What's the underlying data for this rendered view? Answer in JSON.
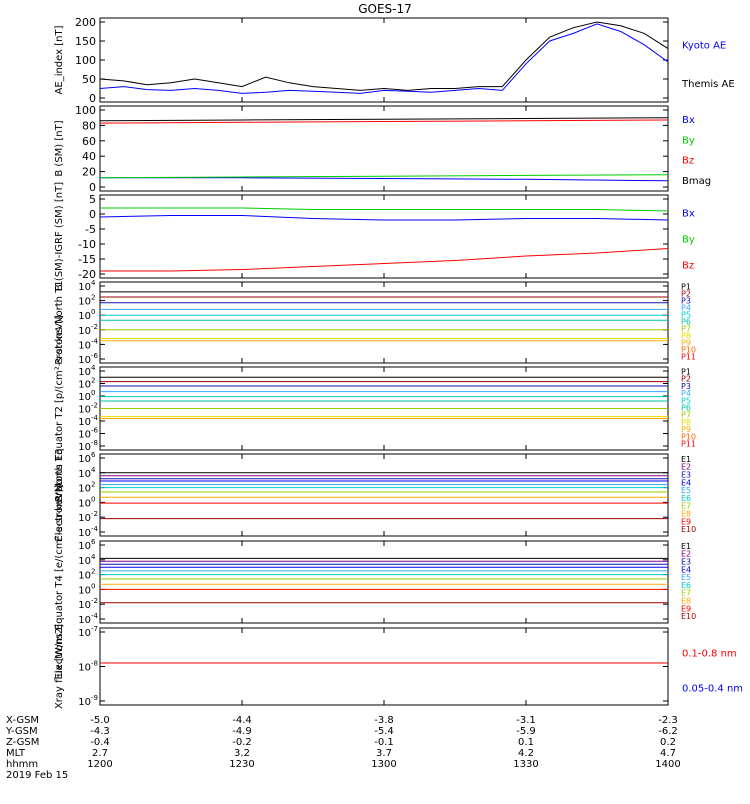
{
  "title": "GOES-17",
  "colors": {
    "black": "#000000",
    "blue": "#0000ff",
    "green": "#00cc00",
    "red": "#ff0000",
    "darkred": "#cc0000",
    "navy": "#1010b0",
    "purple": "#800080",
    "cyan": "#00cccc",
    "teal": "#00c0a0",
    "yellowgreen": "#99cc00",
    "yellow": "#e0e000",
    "orange": "#ffaa00",
    "darkorange": "#ff6600",
    "maroon": "#990000",
    "lightblue": "#33aaff"
  },
  "chart_data": [
    {
      "type": "line",
      "ylabel": "AE_index [nT]",
      "ylim": [
        0,
        200
      ],
      "yticks": [
        "200",
        "150",
        "100",
        "50",
        "0"
      ],
      "x": [
        1200,
        1205,
        1210,
        1215,
        1220,
        1225,
        1230,
        1235,
        1240,
        1245,
        1250,
        1255,
        1300,
        1305,
        1310,
        1315,
        1320,
        1325,
        1330,
        1335,
        1340,
        1345,
        1350,
        1355,
        1400
      ],
      "series": [
        {
          "name": "Kyoto AE",
          "color": "blue",
          "values": [
            25,
            30,
            22,
            20,
            25,
            20,
            12,
            15,
            20,
            18,
            15,
            12,
            20,
            18,
            15,
            20,
            25,
            20,
            90,
            150,
            170,
            195,
            175,
            140,
            95
          ]
        },
        {
          "name": "Themis AE",
          "color": "black",
          "values": [
            50,
            45,
            35,
            40,
            50,
            40,
            30,
            55,
            40,
            30,
            25,
            20,
            25,
            20,
            25,
            25,
            30,
            30,
            100,
            160,
            185,
            200,
            190,
            170,
            130
          ]
        }
      ],
      "legend": [
        {
          "label": "Kyoto AE",
          "color": "blue"
        },
        {
          "label": "Themis AE",
          "color": "black"
        }
      ]
    },
    {
      "type": "line",
      "ylabel": "B (SM) [nT]",
      "ylim": [
        0,
        100
      ],
      "yticks": [
        "100",
        "80",
        "60",
        "40",
        "20",
        "0"
      ],
      "x": [
        1200,
        1230,
        1300,
        1330,
        1400
      ],
      "series": [
        {
          "name": "Bx",
          "color": "blue",
          "values": [
            12,
            12,
            11,
            10,
            8
          ]
        },
        {
          "name": "By",
          "color": "green",
          "values": [
            12,
            13,
            14,
            15,
            16
          ]
        },
        {
          "name": "Bz",
          "color": "red",
          "values": [
            83,
            84,
            85,
            86,
            87
          ]
        },
        {
          "name": "Bmag",
          "color": "black",
          "values": [
            86,
            87,
            88,
            89,
            90
          ]
        }
      ],
      "legend": [
        {
          "label": "Bx",
          "color": "blue"
        },
        {
          "label": "By",
          "color": "green"
        },
        {
          "label": "Bz",
          "color": "red"
        },
        {
          "label": "Bmag",
          "color": "black"
        }
      ]
    },
    {
      "type": "line",
      "ylabel": "B (SM)-IGRF (SM) [nT]",
      "ylim": [
        -20,
        5
      ],
      "yticks": [
        "5",
        "0",
        "-5",
        "-10",
        "-15",
        "-20"
      ],
      "x": [
        1200,
        1215,
        1230,
        1245,
        1300,
        1315,
        1330,
        1345,
        1400
      ],
      "series": [
        {
          "name": "Bx",
          "color": "blue",
          "values": [
            -1,
            -0.5,
            -0.5,
            -1.5,
            -2,
            -2,
            -1.5,
            -1.5,
            -2
          ]
        },
        {
          "name": "By",
          "color": "green",
          "values": [
            2,
            2,
            2,
            1.5,
            1.5,
            1.5,
            1.5,
            1.5,
            1
          ]
        },
        {
          "name": "Bz",
          "color": "red",
          "values": [
            -19,
            -19,
            -18.5,
            -17.5,
            -16.5,
            -15.5,
            -14,
            -13,
            -11.5
          ]
        }
      ],
      "legend": [
        {
          "label": "Bx",
          "color": "blue"
        },
        {
          "label": "By",
          "color": "green"
        },
        {
          "label": "Bz",
          "color": "red"
        }
      ]
    },
    {
      "type": "line",
      "ylabel": "Protons North T1",
      "yscale": "log",
      "ylim": [
        1e-06,
        10000.0
      ],
      "yticks": [
        {
          "m": "10",
          "e": "4"
        },
        {
          "m": "10",
          "e": "2"
        },
        {
          "m": "10",
          "e": "0"
        },
        {
          "m": "10",
          "e": "-2"
        },
        {
          "m": "10",
          "e": "-4"
        },
        {
          "m": "10",
          "e": "-6"
        }
      ],
      "series": [
        {
          "name": "P1",
          "color": "black",
          "exp": 3.2
        },
        {
          "name": "P2",
          "color": "maroon",
          "exp": 2.5
        },
        {
          "name": "P3",
          "color": "navy",
          "exp": 1.7
        },
        {
          "name": "P4",
          "color": "lightblue",
          "exp": 0.8
        },
        {
          "name": "P5",
          "color": "cyan",
          "exp": 0.0
        },
        {
          "name": "P6",
          "color": "teal",
          "exp": -0.7
        },
        {
          "name": "P7",
          "color": "yellowgreen",
          "exp": -2.0
        },
        {
          "name": "P8",
          "color": "yellow",
          "exp": -3.2
        },
        {
          "name": "P9",
          "color": "orange",
          "exp": -3.5
        },
        {
          "name": "P10",
          "color": "darkorange",
          "exp": null
        },
        {
          "name": "P11",
          "color": "red",
          "exp": null
        }
      ]
    },
    {
      "type": "line",
      "ylabel": "Protons Equator T2 [p/(cm²-s-sr-keV)]",
      "yscale": "log",
      "ylim": [
        1e-08,
        10000.0
      ],
      "yticks": [
        {
          "m": "10",
          "e": "4"
        },
        {
          "m": "10",
          "e": "2"
        },
        {
          "m": "10",
          "e": "0"
        },
        {
          "m": "10",
          "e": "-2"
        },
        {
          "m": "10",
          "e": "-4"
        },
        {
          "m": "10",
          "e": "-6"
        },
        {
          "m": "10",
          "e": "-8"
        }
      ],
      "series": [
        {
          "name": "P1",
          "color": "black",
          "exp": 3.0
        },
        {
          "name": "P2",
          "color": "maroon",
          "exp": 2.3
        },
        {
          "name": "P3",
          "color": "navy",
          "exp": 1.6
        },
        {
          "name": "P4",
          "color": "lightblue",
          "exp": 0.7
        },
        {
          "name": "P5",
          "color": "cyan",
          "exp": -0.1
        },
        {
          "name": "P6",
          "color": "teal",
          "exp": -0.8
        },
        {
          "name": "P7",
          "color": "yellowgreen",
          "exp": -2.0
        },
        {
          "name": "P8",
          "color": "yellow",
          "exp": -3.3
        },
        {
          "name": "P9",
          "color": "orange",
          "exp": -3.6
        },
        {
          "name": "P10",
          "color": "darkorange",
          "exp": null
        },
        {
          "name": "P11",
          "color": "red",
          "exp": null
        }
      ]
    },
    {
      "type": "line",
      "ylabel": "Electrons North T3",
      "yscale": "log",
      "ylim": [
        0.0001,
        1000000.0
      ],
      "yticks": [
        {
          "m": "10",
          "e": "6"
        },
        {
          "m": "10",
          "e": "4"
        },
        {
          "m": "10",
          "e": "2"
        },
        {
          "m": "10",
          "e": "0"
        },
        {
          "m": "10",
          "e": "-2"
        },
        {
          "m": "10",
          "e": "-4"
        }
      ],
      "series": [
        {
          "name": "E1",
          "color": "black",
          "exp": 4.0
        },
        {
          "name": "E2",
          "color": "purple",
          "exp": 3.6
        },
        {
          "name": "E3",
          "color": "navy",
          "exp": 3.2
        },
        {
          "name": "E4",
          "color": "blue",
          "exp": 2.9
        },
        {
          "name": "E5",
          "color": "lightblue",
          "exp": 2.4
        },
        {
          "name": "E6",
          "color": "cyan",
          "exp": 2.0
        },
        {
          "name": "E7",
          "color": "yellowgreen",
          "exp": 1.4
        },
        {
          "name": "E8",
          "color": "orange",
          "exp": 0.7
        },
        {
          "name": "E9",
          "color": "red",
          "exp": -0.1
        },
        {
          "name": "E10",
          "color": "maroon",
          "exp": -2.2
        }
      ]
    },
    {
      "type": "line",
      "ylabel": "Electrons Equator T4 [e/(cm²-s-sr-keV)]",
      "yscale": "log",
      "ylim": [
        0.0001,
        1000000.0
      ],
      "yticks": [
        {
          "m": "10",
          "e": "6"
        },
        {
          "m": "10",
          "e": "4"
        },
        {
          "m": "10",
          "e": "2"
        },
        {
          "m": "10",
          "e": "0"
        },
        {
          "m": "10",
          "e": "-2"
        },
        {
          "m": "10",
          "e": "-4"
        }
      ],
      "series": [
        {
          "name": "E1",
          "color": "black",
          "exp": 4.2
        },
        {
          "name": "E2",
          "color": "purple",
          "exp": 3.8
        },
        {
          "name": "E3",
          "color": "navy",
          "exp": 3.4
        },
        {
          "name": "E4",
          "color": "blue",
          "exp": 3.0
        },
        {
          "name": "E5",
          "color": "lightblue",
          "exp": 2.5
        },
        {
          "name": "E6",
          "color": "cyan",
          "exp": 2.0
        },
        {
          "name": "E7",
          "color": "yellowgreen",
          "exp": 1.4
        },
        {
          "name": "E8",
          "color": "orange",
          "exp": 0.7
        },
        {
          "name": "E9",
          "color": "red",
          "exp": 0.0
        },
        {
          "name": "E10",
          "color": "maroon",
          "exp": -1.8
        }
      ]
    },
    {
      "type": "line",
      "ylabel": "Xray flux [W/m2]",
      "yscale": "log",
      "ylim": [
        1e-09,
        1e-07
      ],
      "yticks": [
        {
          "m": "10",
          "e": "-7"
        },
        {
          "m": "10",
          "e": "-8"
        },
        {
          "m": "10",
          "e": "-9"
        }
      ],
      "series": [
        {
          "name": "0.1-0.8 nm",
          "color": "red",
          "exp": -7.9
        },
        {
          "name": "0.05-0.4 nm",
          "color": "blue",
          "exp": null
        }
      ]
    }
  ],
  "xaxis": {
    "rows": [
      {
        "label": "X-GSM",
        "values": [
          "-5.0",
          "-4.4",
          "-3.8",
          "-3.1",
          "-2.3"
        ]
      },
      {
        "label": "Y-GSM",
        "values": [
          "-4.3",
          "-4.9",
          "-5.4",
          "-5.9",
          "-6.2"
        ]
      },
      {
        "label": "Z-GSM",
        "values": [
          "-0.4",
          "-0.2",
          "-0.1",
          "0.1",
          "0.2"
        ]
      },
      {
        "label": "MLT",
        "values": [
          "2.7",
          "3.2",
          "3.7",
          "4.2",
          "4.7"
        ]
      },
      {
        "label": "hhmm",
        "values": [
          "1200",
          "1230",
          "1300",
          "1330",
          "1400"
        ]
      }
    ],
    "date": "2019 Feb 15"
  }
}
